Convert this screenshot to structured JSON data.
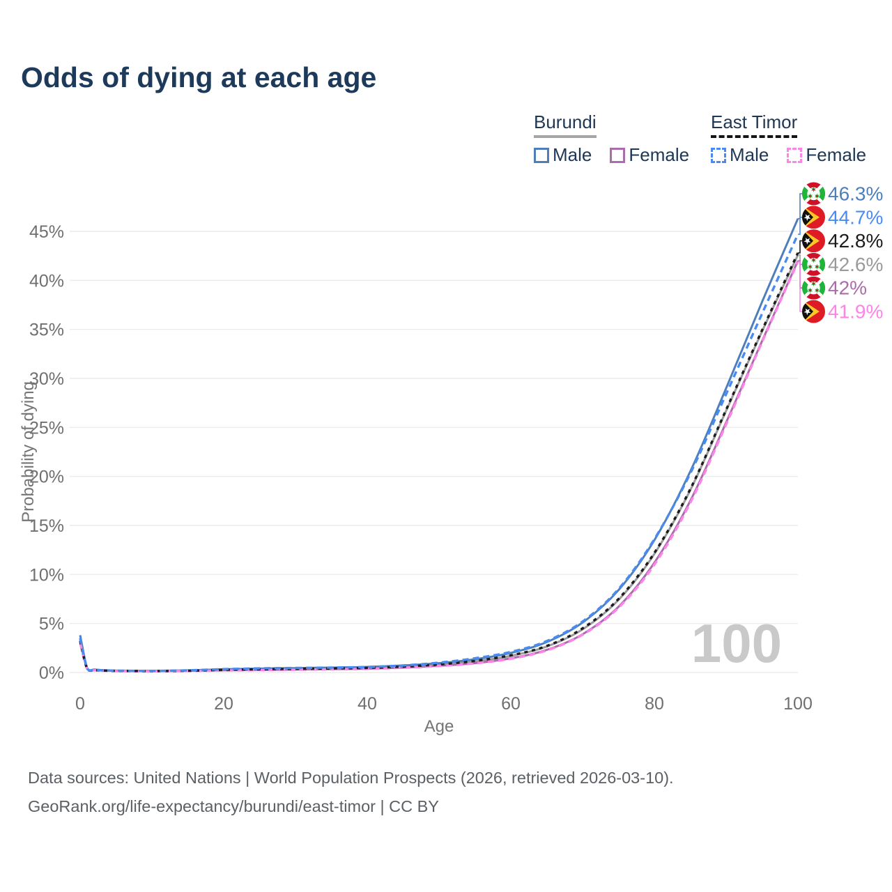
{
  "title": "Odds of dying at each age",
  "legend": {
    "groups": [
      {
        "name": "Burundi",
        "underline_style": "solid",
        "underline_color": "#a5a5a5",
        "items": [
          {
            "label": "Male",
            "color": "#4e7fba",
            "dashed": false
          },
          {
            "label": "Female",
            "color": "#ab6cab",
            "dashed": false
          }
        ]
      },
      {
        "name": "East Timor",
        "underline_style": "dashed",
        "underline_color": "#151515",
        "items": [
          {
            "label": "Male",
            "color": "#4a8bf2",
            "dashed": true
          },
          {
            "label": "Female",
            "color": "#fd84e9",
            "dashed": true
          }
        ]
      }
    ]
  },
  "footer": {
    "line1": "Data sources: United Nations | World Population Prospects (2026, retrieved 2026-03-10).",
    "line2": "GeoRank.org/life-expectancy/burundi/east-timor | CC BY"
  },
  "chart_data": {
    "type": "line",
    "title": "Odds of dying at each age",
    "xlabel": "Age",
    "ylabel": "Probability of dying",
    "xlim": [
      0,
      100
    ],
    "ylim": [
      0,
      48.7
    ],
    "grid": "horizontal",
    "legend_position": "top-right",
    "age_indicator": "100",
    "x_ticks": [
      0,
      20,
      40,
      60,
      80,
      100
    ],
    "x_tick_labels": [
      "0",
      "20",
      "40",
      "60",
      "80",
      "100"
    ],
    "y_ticks": [
      0,
      5,
      10,
      15,
      20,
      25,
      30,
      35,
      40,
      45
    ],
    "y_tick_labels": [
      "0%",
      "5%",
      "10%",
      "15%",
      "20%",
      "25%",
      "30%",
      "35%",
      "40%",
      "45%"
    ],
    "x": [
      0,
      1,
      2,
      3,
      4,
      5,
      10,
      15,
      20,
      25,
      30,
      35,
      40,
      45,
      50,
      55,
      60,
      65,
      70,
      75,
      80,
      85,
      90,
      95,
      100
    ],
    "series": [
      {
        "id": "burundi-both",
        "country": "Burundi",
        "group": "Both sexes",
        "color": "#9a9a9a",
        "dash": null,
        "flag": "burundi-flag-icon",
        "end_label": "42.6%",
        "values": [
          3.5,
          0.38,
          0.27,
          0.22,
          0.2,
          0.18,
          0.16,
          0.19,
          0.27,
          0.33,
          0.37,
          0.41,
          0.47,
          0.6,
          0.8,
          1.13,
          1.7,
          2.65,
          4.4,
          7.4,
          12.1,
          18.6,
          26.7,
          34.8,
          42.6
        ]
      },
      {
        "id": "burundi-female",
        "country": "Burundi",
        "group": "Female",
        "color": "#ab6cab",
        "dash": null,
        "flag": "burundi-flag-icon",
        "end_label": "42%",
        "values": [
          3.3,
          0.36,
          0.25,
          0.21,
          0.19,
          0.17,
          0.15,
          0.17,
          0.22,
          0.26,
          0.3,
          0.34,
          0.39,
          0.5,
          0.68,
          0.95,
          1.45,
          2.3,
          3.9,
          6.7,
          11.2,
          17.5,
          25.5,
          33.8,
          42.0
        ]
      },
      {
        "id": "burundi-male",
        "country": "Burundi",
        "group": "Male",
        "color": "#4e7fba",
        "dash": null,
        "flag": "burundi-flag-icon",
        "end_label": "46.3%",
        "values": [
          3.8,
          0.42,
          0.3,
          0.25,
          0.22,
          0.2,
          0.18,
          0.22,
          0.33,
          0.4,
          0.45,
          0.5,
          0.57,
          0.72,
          0.95,
          1.35,
          2.0,
          3.1,
          5.1,
          8.4,
          13.5,
          20.5,
          29.0,
          37.8,
          46.3
        ]
      },
      {
        "id": "east-timor-female",
        "country": "East Timor",
        "group": "Female",
        "color": "#fd84e9",
        "dash": "9 6",
        "flag": "east-timor-flag-icon",
        "end_label": "41.9%",
        "values": [
          3.0,
          0.32,
          0.23,
          0.19,
          0.17,
          0.15,
          0.13,
          0.16,
          0.2,
          0.24,
          0.28,
          0.32,
          0.37,
          0.48,
          0.66,
          0.93,
          1.4,
          2.25,
          3.85,
          6.6,
          11.0,
          17.3,
          25.3,
          33.7,
          41.9
        ]
      },
      {
        "id": "east-timor-both",
        "country": "East Timor",
        "group": "Both sexes",
        "color": "#1c1c1c",
        "dash": "5 6",
        "flag": "east-timor-flag-icon",
        "end_label": "42.8%",
        "values": [
          3.2,
          0.34,
          0.24,
          0.2,
          0.18,
          0.16,
          0.14,
          0.18,
          0.27,
          0.33,
          0.37,
          0.41,
          0.47,
          0.6,
          0.82,
          1.18,
          1.75,
          2.7,
          4.5,
          7.5,
          12.2,
          18.7,
          26.8,
          34.9,
          42.8
        ]
      },
      {
        "id": "east-timor-male",
        "country": "East Timor",
        "group": "Male",
        "color": "#4a8bf2",
        "dash": "9 6",
        "flag": "east-timor-flag-icon",
        "end_label": "44.7%",
        "values": [
          3.5,
          0.38,
          0.27,
          0.22,
          0.2,
          0.18,
          0.16,
          0.22,
          0.34,
          0.42,
          0.46,
          0.5,
          0.56,
          0.72,
          1.0,
          1.45,
          2.1,
          3.2,
          5.2,
          8.5,
          13.6,
          20.3,
          28.4,
          36.6,
          44.7
        ]
      }
    ]
  }
}
